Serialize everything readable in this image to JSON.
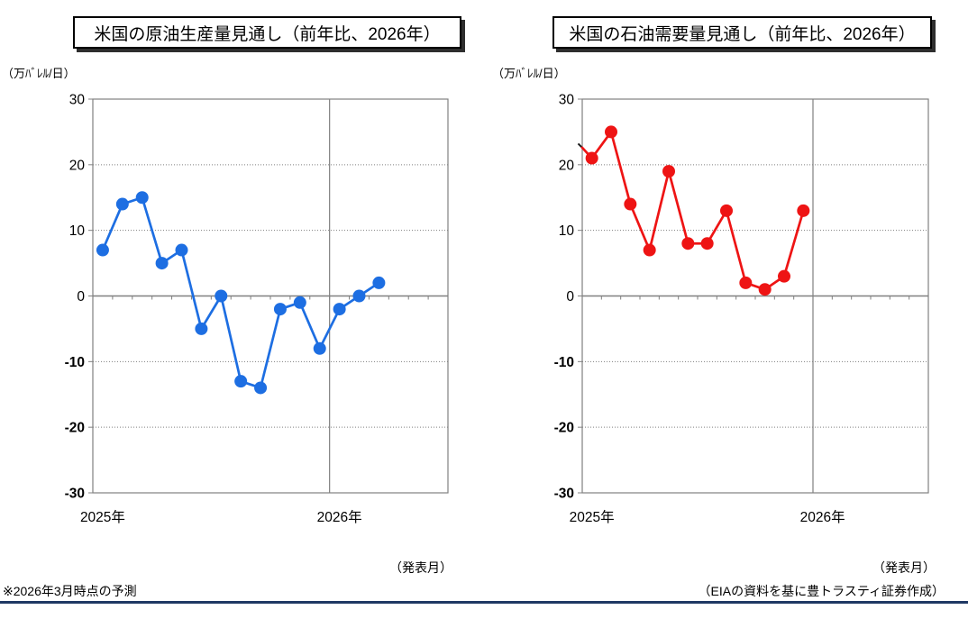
{
  "footer": {
    "note": "※2026年3月時点の予測",
    "source": "（EIAの資料を基に豊トラスティ証券作成）",
    "rule_color": "#1F3864"
  },
  "axis_colors": {
    "plot_border": "#808080",
    "gridline": "#7f7f7f",
    "tick_label": "#000000"
  },
  "chart_data": [
    {
      "type": "line",
      "title": "米国の原油生産量見通し（前年比、2026年）",
      "y_unit_label": "（万ﾊﾞﾚﾙ/日）",
      "x_axis_title": "（発表月）",
      "ylim": [
        -30,
        30
      ],
      "y_ticks": [
        30,
        20,
        10,
        0,
        -10,
        -20,
        -30
      ],
      "grid_dotted_at": [
        20,
        10,
        -10,
        -20
      ],
      "x_total_categories": 18,
      "x_year_groups": [
        {
          "label": "2025年",
          "months": 12
        },
        {
          "label": "2026年",
          "months": 6
        }
      ],
      "legend": "none",
      "series": [
        {
          "color": "#1D6EE2",
          "values": [
            7,
            14,
            15,
            5,
            7,
            -5,
            0,
            -13,
            -14,
            -2,
            -1,
            -8,
            -2,
            0,
            2
          ]
        }
      ]
    },
    {
      "type": "line",
      "title": "米国の石油需要量見通し（前年比、2026年）",
      "y_unit_label": "（万ﾊﾞﾚﾙ/日）",
      "x_axis_title": "（発表月）",
      "ylim": [
        -30,
        30
      ],
      "y_ticks": [
        30,
        20,
        10,
        0,
        -10,
        -20,
        -30
      ],
      "grid_dotted_at": [
        20,
        10,
        -10,
        -20
      ],
      "x_total_categories": 18,
      "x_year_groups": [
        {
          "label": "2025年",
          "months": 12
        },
        {
          "label": "2026年",
          "months": 6
        }
      ],
      "legend": "none",
      "series": [
        {
          "color": "#EE1414",
          "lead_in_value": 22.6,
          "lead_in_black_tip": true,
          "values": [
            21,
            25,
            14,
            7,
            19,
            8,
            8,
            13,
            2,
            1,
            3,
            13
          ]
        }
      ]
    }
  ]
}
